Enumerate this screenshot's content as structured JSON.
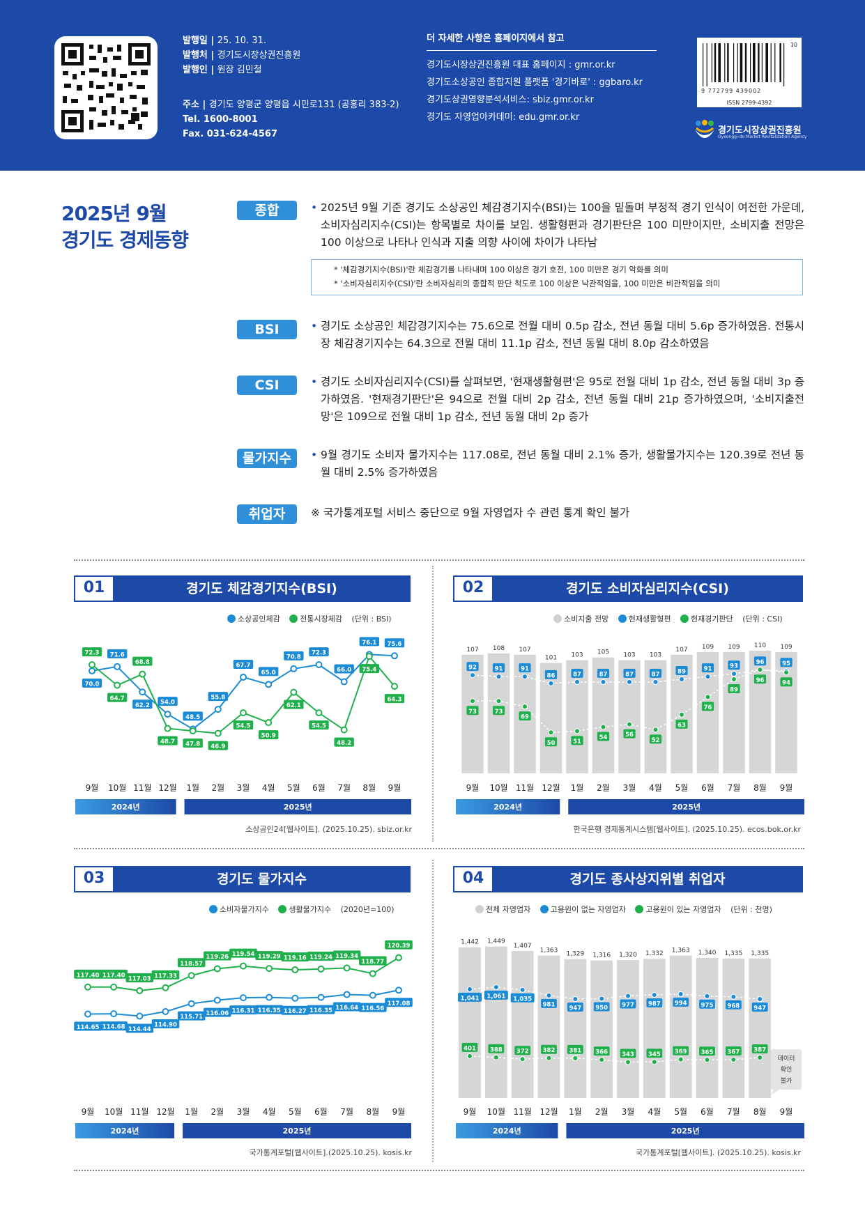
{
  "header": {
    "pub_date_label": "발행일",
    "pub_date": "25. 10. 31.",
    "publisher_label": "발행처",
    "publisher": "경기도시장상권진흥원",
    "issuer_label": "발행인",
    "issuer": "원장 김민철",
    "address_label": "주소",
    "address": "경기도 양평군 양평읍 시민로131 (공흥리 383-2)",
    "tel": "Tel. 1600-8001",
    "fax": "Fax. 031-624-4567",
    "more_title": "더 자세한 사항은 홈페이지에서 참고",
    "links": [
      "경기도시장상권진흥원 대표 홈페이지 : gmr.or.kr",
      "경기도소상공인 종합지원 플랫폼 '경기바로' : ggbaro.kr",
      "경기도상권영향분석서비스: sbiz.gmr.or.kr",
      "경기도 자영업아카데미: edu.gmr.or.kr"
    ],
    "barcode_number": "9 772799 439002",
    "issue_no": "10",
    "issn": "ISSN 2799-4392",
    "agency_name": "경기도시장상권진흥원",
    "agency_sub": "Gyeonggi-do Market Revitalization Agency"
  },
  "title_line1": "2025년 9월",
  "title_line2": "경기도 경제동향",
  "sections": {
    "summary": {
      "tag": "종합",
      "text": "2025년 9월 기준 경기도 소상공인 체감경기지수(BSI)는 100을 밑돌며 부정적 경기 인식이 여전한 가운데, 소비자심리지수(CSI)는 항목별로 차이를 보임. 생활형편과 경기판단은 100 미만이지만, 소비지출 전망은 100 이상으로 나타나 인식과 지출 의향 사이에 차이가 나타남",
      "note1": "* '체감경기지수(BSI)'란 체감경기를 나타내며 100 이상은 경기 호전, 100 미만은 경기 악화를 의미",
      "note2": "* '소비자심리지수(CSI)'란 소비자심리의 종합적 판단 척도로 100 이상은 낙관적임을, 100 미만은 비관적임을 의미"
    },
    "bsi": {
      "tag": "BSI",
      "text": "경기도 소상공인 체감경기지수는 75.6으로 전월 대비 0.5p 감소, 전년 동월 대비 5.6p 증가하였음. 전통시장 체감경기지수는 64.3으로 전월 대비 11.1p 감소, 전년 동월 대비 8.0p 감소하였음"
    },
    "csi": {
      "tag": "CSI",
      "text": "경기도 소비자심리지수(CSI)를 살펴보면, '현재생활형편'은 95로 전월 대비 1p 감소, 전년 동월 대비 3p 증가하였음. '현재경기판단'은 94으로 전월 대비 2p 감소, 전년 동월 대비 21p 증가하였으며, '소비지출전망'은 109으로 전월 대비 1p 감소, 전년 동월 대비 2p 증가"
    },
    "price": {
      "tag": "물가지수",
      "text": "9월 경기도 소비자 물가지수는 117.08로, 전년 동월 대비 2.1% 증가, 생활물가지수는 120.39로 전년 동월 대비 2.5% 증가하였음"
    },
    "employ": {
      "tag": "취업자",
      "text": "※ 국가통계포털 서비스 중단으로 9월 자영업자 수 관련 통계 확인 불가"
    }
  },
  "chart_data": [
    {
      "type": "line",
      "number": "01",
      "title": "경기도 체감경기지수(BSI)",
      "unit": "(단위 : BSI)",
      "categories": [
        "9월",
        "10월",
        "11월",
        "12월",
        "1월",
        "2월",
        "3월",
        "4월",
        "5월",
        "6월",
        "7월",
        "8월",
        "9월"
      ],
      "year_labels": [
        "2024년",
        "2025년"
      ],
      "series": [
        {
          "name": "소상공인체감",
          "color": "#1b8bd6",
          "values": [
            70.0,
            71.6,
            62.2,
            54.0,
            48.5,
            55.8,
            67.7,
            65.0,
            70.8,
            72.3,
            66.0,
            76.1,
            75.6
          ]
        },
        {
          "name": "전통시장체감",
          "color": "#1fb04b",
          "values": [
            72.3,
            64.7,
            68.8,
            48.7,
            47.8,
            46.9,
            54.5,
            50.9,
            62.1,
            54.5,
            48.2,
            75.4,
            64.3
          ]
        }
      ],
      "source": "소상공인24[웹사이트]. (2025.10.25). sbiz.or.kr"
    },
    {
      "type": "bar",
      "number": "02",
      "title": "경기도 소비자심리지수(CSI)",
      "unit": "(단위 : CSI)",
      "categories": [
        "9월",
        "10월",
        "11월",
        "12월",
        "1월",
        "2월",
        "3월",
        "4월",
        "5월",
        "6월",
        "7월",
        "8월",
        "9월"
      ],
      "year_labels": [
        "2024년",
        "2025년"
      ],
      "series": [
        {
          "name": "소비지출 전망",
          "color": "#cfcfcf",
          "values": [
            107,
            108,
            107,
            101,
            103,
            105,
            103,
            103,
            107,
            109,
            109,
            110,
            109
          ]
        },
        {
          "name": "현재생활형편",
          "color": "#1b8bd6",
          "values": [
            92,
            91,
            91,
            86,
            87,
            87,
            87,
            87,
            89,
            91,
            93,
            96,
            95
          ]
        },
        {
          "name": "현재경기판단",
          "color": "#1fb04b",
          "values": [
            73,
            73,
            69,
            50,
            51,
            54,
            56,
            52,
            63,
            76,
            89,
            96,
            94
          ]
        }
      ],
      "source": "한국은행 경제통계시스템[웹사이트]. (2025.10.25). ecos.bok.or.kr"
    },
    {
      "type": "line",
      "number": "03",
      "title": "경기도 물가지수",
      "unit": "(2020년=100)",
      "categories": [
        "9월",
        "10월",
        "11월",
        "12월",
        "1월",
        "2월",
        "3월",
        "4월",
        "5월",
        "6월",
        "7월",
        "8월",
        "9월"
      ],
      "year_labels": [
        "2024년",
        "2025년"
      ],
      "series": [
        {
          "name": "소비자물가지수",
          "color": "#1b8bd6",
          "values": [
            114.65,
            114.68,
            114.44,
            114.9,
            115.71,
            116.06,
            116.31,
            116.35,
            116.27,
            116.35,
            116.64,
            116.56,
            117.08
          ]
        },
        {
          "name": "생활물가지수",
          "color": "#1fb04b",
          "values": [
            117.4,
            117.4,
            117.03,
            117.33,
            118.57,
            119.26,
            119.54,
            119.29,
            119.16,
            119.24,
            119.34,
            118.77,
            120.39
          ]
        }
      ],
      "source": "국가통계포털[웹사이트].(2025.10.25). kosis.kr"
    },
    {
      "type": "bar",
      "number": "04",
      "title": "경기도 종사상지위별 취업자",
      "unit": "(단위 : 천명)",
      "categories": [
        "9월",
        "10월",
        "11월",
        "12월",
        "1월",
        "2월",
        "3월",
        "4월",
        "5월",
        "6월",
        "7월",
        "8월",
        "9월"
      ],
      "year_labels": [
        "2024년",
        "2025년"
      ],
      "series": [
        {
          "name": "전체 자영업자",
          "color": "#cfcfcf",
          "values": [
            1442,
            1449,
            1407,
            1363,
            1329,
            1316,
            1320,
            1332,
            1363,
            1340,
            1335,
            1335,
            null
          ]
        },
        {
          "name": "고용원이 없는 자영업자",
          "color": "#1b8bd6",
          "values": [
            1041,
            1061,
            1035,
            981,
            947,
            950,
            977,
            987,
            994,
            975,
            968,
            947,
            null
          ]
        },
        {
          "name": "고용원이 있는 자영업자",
          "color": "#1fb04b",
          "values": [
            401,
            388,
            372,
            382,
            381,
            366,
            343,
            345,
            369,
            365,
            367,
            387,
            null
          ]
        }
      ],
      "na_label": "데이터 확인 불가",
      "source": "국가통계포털[웹사이트]. (2025.10.25). kosis.kr"
    }
  ]
}
